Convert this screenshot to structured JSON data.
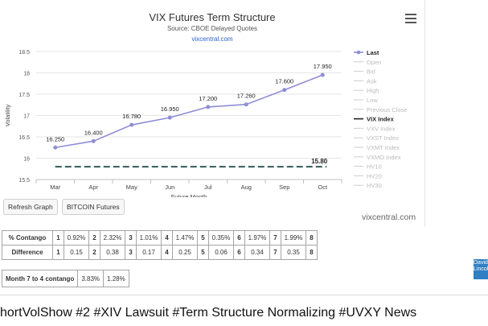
{
  "chart_data": {
    "type": "line",
    "title": "VIX Futures Term Structure",
    "subtitle": "Source: CBOE Delayed Quotes",
    "source_link": "vixcentral.com",
    "xlabel": "Future Month",
    "ylabel": "Volatility",
    "categories": [
      "Mar",
      "Apr",
      "May",
      "Jun",
      "Jul",
      "Aug",
      "Sep",
      "Oct"
    ],
    "ylim": [
      15.5,
      18.5
    ],
    "yticks": [
      "15.5",
      "16",
      "16.5",
      "17",
      "17.5",
      "18",
      "18.5"
    ],
    "series": [
      {
        "name": "Last",
        "values": [
          16.25,
          16.4,
          16.78,
          16.95,
          17.2,
          17.26,
          17.6,
          17.95
        ],
        "labels": [
          "16.250",
          "16.400",
          "16.780",
          "16.950",
          "17.200",
          "17.260",
          "17.600",
          "17.950"
        ],
        "color": "#8e8ed6"
      },
      {
        "name": "VIX Index",
        "constant": 15.8,
        "label": "15.80",
        "color": "#335a5a"
      }
    ],
    "legend": {
      "position": "right",
      "items": [
        "Last",
        "Open",
        "Bid",
        "Ask",
        "High",
        "Low",
        "Previous Close",
        "VIX Index",
        "VXV Index",
        "VXST Index",
        "VXMT Index",
        "VXMO Index",
        "HV10",
        "HV20",
        "HV30"
      ],
      "active": [
        "Last",
        "VIX Index"
      ]
    },
    "grid": "horizontal"
  },
  "controls": {
    "refresh": "Refresh Graph",
    "bitcoin": "BITCOIN Futures",
    "watermark": "vixcentral.com"
  },
  "table": {
    "contango_label": "% Contango",
    "difference_label": "Difference",
    "contango": [
      "0.92%",
      "2.32%",
      "1.01%",
      "1.47%",
      "0.35%",
      "1.97%",
      "1.99%"
    ],
    "difference": [
      "0.15",
      "0.38",
      "0.17",
      "0.25",
      "0.06",
      "0.34",
      "0.35"
    ],
    "indices": [
      "1",
      "2",
      "3",
      "4",
      "5",
      "6",
      "7",
      "8"
    ]
  },
  "month74": {
    "label": "Month 7 to 4 contango",
    "v1": "3.83%",
    "v2": "1.28%"
  },
  "caption": "hortVolShow #2 #XIV Lawsuit #Term Structure Normalizing #UVXY News",
  "logo_text": "David Lincoln"
}
